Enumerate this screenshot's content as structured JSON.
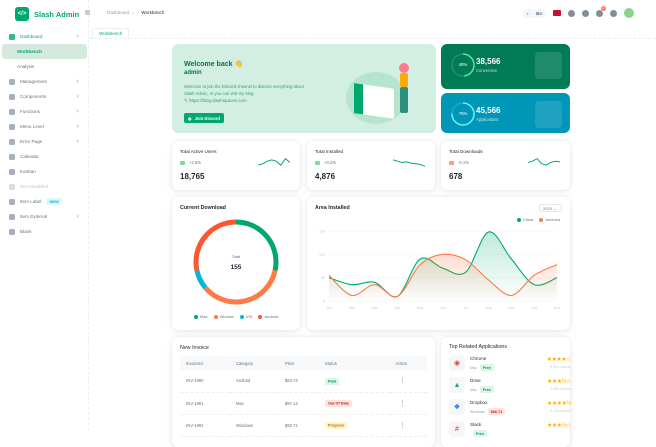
{
  "app": {
    "name": "Slash Admin",
    "logo_glyph": "</>"
  },
  "sidebar": {
    "items": [
      {
        "label": "Dashboard",
        "icon": "chart-icon",
        "expanded": true,
        "active": true
      },
      {
        "label": "Workbench",
        "sub": true,
        "selected": true
      },
      {
        "label": "Analysis",
        "sub": true
      },
      {
        "label": "Management",
        "icon": "briefcase-icon",
        "chevron": true
      },
      {
        "label": "Components",
        "icon": "grid-icon",
        "chevron": true
      },
      {
        "label": "Functions",
        "icon": "megaphone-icon",
        "chevron": true
      },
      {
        "label": "Menu Level",
        "icon": "menu-icon",
        "chevron": true
      },
      {
        "label": "Error Page",
        "icon": "error-icon",
        "chevron": true
      },
      {
        "label": "Calendar",
        "icon": "calendar-icon"
      },
      {
        "label": "Kanban",
        "icon": "clipboard-icon"
      },
      {
        "label": "Item Disabled",
        "icon": "disabled-icon",
        "disabled": true
      },
      {
        "label": "Item Label",
        "icon": "star-icon",
        "badge": "NEW"
      },
      {
        "label": "Item External",
        "icon": "external-icon",
        "chevron": true
      },
      {
        "label": "Blank",
        "icon": "file-icon"
      }
    ]
  },
  "header": {
    "breadcrumb": [
      "Dashboard",
      "Workbench"
    ],
    "search_shortcut": "⌘K",
    "notification_count": "4"
  },
  "tabs": [
    {
      "label": "Workbench"
    }
  ],
  "welcome": {
    "title": "Welcome back 👋",
    "user": "admin",
    "text": "Welcome to join the Discord channel to discuss everything about Slash Admin, or you can visit my blog:",
    "link": "https://blog.slashspaces.com",
    "button": "Join Discord"
  },
  "kpis": [
    {
      "percent": "48%",
      "value": "38,566",
      "label": "Conversion",
      "color": "#007b55",
      "ring": "#5be49b",
      "fraction": 0.48
    },
    {
      "percent": "75%",
      "value": "45,566",
      "label": "Applications",
      "color": "#0096b8",
      "ring": "#61f3f3",
      "fraction": 0.75
    }
  ],
  "stats": [
    {
      "title": "Total Active Users",
      "change": "+2.6%",
      "value": "18,765",
      "trend": "up",
      "spark": [
        3,
        4,
        6,
        7,
        6,
        3,
        8,
        5
      ]
    },
    {
      "title": "Total Installed",
      "change": "+0.2%",
      "value": "4,876",
      "trend": "up",
      "spark": [
        7,
        6,
        5,
        5.5,
        4.5,
        4,
        3.5,
        2
      ]
    },
    {
      "title": "Total Downloads",
      "change": "-0.1%",
      "value": "678",
      "trend": "down",
      "spark": [
        5,
        6,
        8,
        4,
        3,
        5,
        6,
        5.5
      ]
    }
  ],
  "colors": {
    "primary": "#00a76f",
    "china": "#00a76f",
    "america": "#ff7a45",
    "up": "#22c55e",
    "down": "#ff5630"
  },
  "current_download": {
    "title": "Current Download",
    "total_label": "Total",
    "total": "155"
  },
  "area_installed": {
    "title": "Area Installed",
    "year": "2023"
  },
  "chart_data": [
    {
      "type": "pie",
      "title": "Current Download",
      "categories": [
        "Mac",
        "Window",
        "iOS",
        "Android"
      ],
      "values": [
        44,
        55,
        12,
        44
      ],
      "colors": [
        "#00a76f",
        "#ff7a45",
        "#00b8d9",
        "#ff5630"
      ],
      "legend": "bottom",
      "donut": true
    },
    {
      "type": "area",
      "title": "Area Installed",
      "categories": [
        "Jan",
        "Feb",
        "Mar",
        "Apr",
        "May",
        "Jun",
        "Jul",
        "Aug",
        "Sep",
        "Oct",
        "Nov"
      ],
      "series": [
        {
          "name": "China",
          "color": "#00a76f",
          "values": [
            50,
            35,
            40,
            10,
            90,
            70,
            62,
            148,
            90,
            35,
            50
          ]
        },
        {
          "name": "America",
          "color": "#ff7a45",
          "values": [
            55,
            12,
            35,
            10,
            78,
            100,
            88,
            45,
            12,
            55,
            78
          ]
        }
      ],
      "yticks": [
        0,
        50,
        100,
        150
      ],
      "ylim": [
        0,
        150
      ],
      "legend": "top-right",
      "grid": true
    }
  ],
  "invoice": {
    "title": "New Invoice",
    "columns": [
      "InvoiceId",
      "Category",
      "Price",
      "Status",
      "Action"
    ],
    "rows": [
      {
        "id": "INV-1990",
        "category": "Android",
        "price": "$83.74",
        "status": "Paid",
        "status_color": "#118d57",
        "status_bg": "#dcf6e6"
      },
      {
        "id": "INV-1991",
        "category": "Mac",
        "price": "$97.14",
        "status": "Out Of Date",
        "status_color": "#b71d18",
        "status_bg": "#ffe4de"
      },
      {
        "id": "INV-1992",
        "category": "Windows",
        "price": "$60.71",
        "status": "Progress",
        "status_color": "#b76e00",
        "status_bg": "#fff5cc"
      }
    ]
  },
  "apps": {
    "title": "Top Related Applications",
    "items": [
      {
        "name": "Chrome",
        "icon": "chrome-icon",
        "glyph": "◉",
        "glyph_color": "#ea4335",
        "platform": "Mac",
        "price": "Free",
        "paid": false,
        "stars": "★★★★☆",
        "reviews": "9.91k reviews"
      },
      {
        "name": "Drive",
        "icon": "drive-icon",
        "glyph": "▲",
        "glyph_color": "#1fa463",
        "platform": "Mac",
        "price": "Free",
        "paid": false,
        "stars": "★★★½☆",
        "reviews": "1.95k reviews"
      },
      {
        "name": "Dropbox",
        "icon": "dropbox-icon",
        "glyph": "❖",
        "glyph_color": "#0061ff",
        "platform": "Windows",
        "price": "$66.71",
        "paid": true,
        "stars": "★★★★½",
        "reviews": "9.12k reviews"
      },
      {
        "name": "Slack",
        "icon": "slack-icon",
        "glyph": "#",
        "glyph_color": "#e01e5a",
        "platform": "",
        "price": "Free",
        "paid": false,
        "stars": "★★★½☆",
        "reviews": ""
      }
    ]
  }
}
